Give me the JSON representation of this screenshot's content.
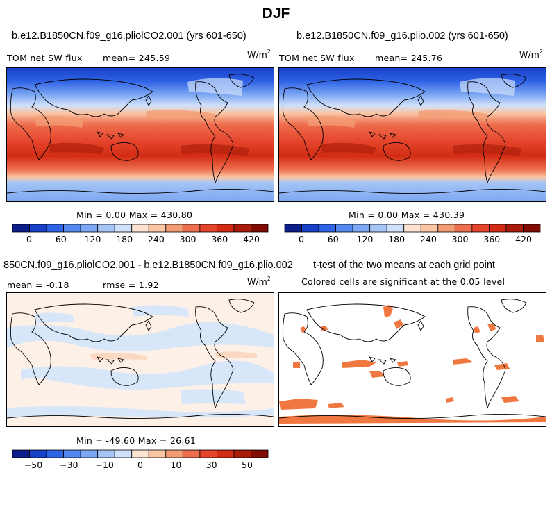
{
  "figure_title": "DJF",
  "chart_data": [
    {
      "type": "heatmap",
      "title": "b.e12.B1850CN.f09_g16.pliolCO2.001 (yrs 601-650)",
      "variable": "TOM net SW flux",
      "mean_label": "mean= 245.59",
      "units_base": "W/m",
      "units_exp": "2",
      "minmax_label": "Min =    0.00 Max = 430.80",
      "min": 0.0,
      "max": 430.8,
      "colorbar": {
        "colors": [
          "#0c1e8c",
          "#1641c8",
          "#2f63e6",
          "#5488ee",
          "#7ca7f2",
          "#a6c5f6",
          "#cfe0fa",
          "#fde4d2",
          "#f9c5a4",
          "#f49c76",
          "#ee6f4e",
          "#e5452c",
          "#d22c14",
          "#a81c0a",
          "#800c04"
        ],
        "ticks": [
          "0",
          "60",
          "120",
          "180",
          "240",
          "300",
          "360",
          "420"
        ]
      }
    },
    {
      "type": "heatmap",
      "title": "b.e12.B1850CN.f09_g16.plio.002 (yrs 601-650)",
      "variable": "TOM net SW flux",
      "mean_label": "mean= 245.76",
      "units_base": "W/m",
      "units_exp": "2",
      "minmax_label": "Min =    0.00 Max = 430.39",
      "min": 0.0,
      "max": 430.39,
      "colorbar": {
        "colors": [
          "#0c1e8c",
          "#1641c8",
          "#2f63e6",
          "#5488ee",
          "#7ca7f2",
          "#a6c5f6",
          "#cfe0fa",
          "#fde4d2",
          "#f9c5a4",
          "#f49c76",
          "#ee6f4e",
          "#e5452c",
          "#d22c14",
          "#a81c0a",
          "#800c04"
        ],
        "ticks": [
          "0",
          "60",
          "120",
          "180",
          "240",
          "300",
          "360",
          "420"
        ]
      }
    },
    {
      "type": "heatmap",
      "title": "850CN.f09_g16.pliolCO2.001 - b.e12.B1850CN.f09_g16.plio.002",
      "mean_label": "mean =  -0.18",
      "rmse_label": "rmse =    1.92",
      "units_base": "W/m",
      "units_exp": "2",
      "minmax_label": "Min = -49.60 Max =  26.61",
      "min": -49.6,
      "max": 26.61,
      "colorbar": {
        "colors": [
          "#0c1e8c",
          "#1641c8",
          "#2f63e6",
          "#5488ee",
          "#7ca7f2",
          "#a6c5f6",
          "#cfe0fa",
          "#fde4d2",
          "#f9c5a4",
          "#f49c76",
          "#ee6f4e",
          "#e5452c",
          "#d22c14",
          "#a81c0a",
          "#800c04"
        ],
        "ticks": [
          "-50",
          "-30",
          "-10",
          "0",
          "10",
          "30",
          "50"
        ]
      }
    },
    {
      "type": "heatmap",
      "title": "t-test of the two means at each grid point",
      "subtitle": "Colored cells are significant at the 0.05 level",
      "significant_color": "#f07840"
    }
  ]
}
